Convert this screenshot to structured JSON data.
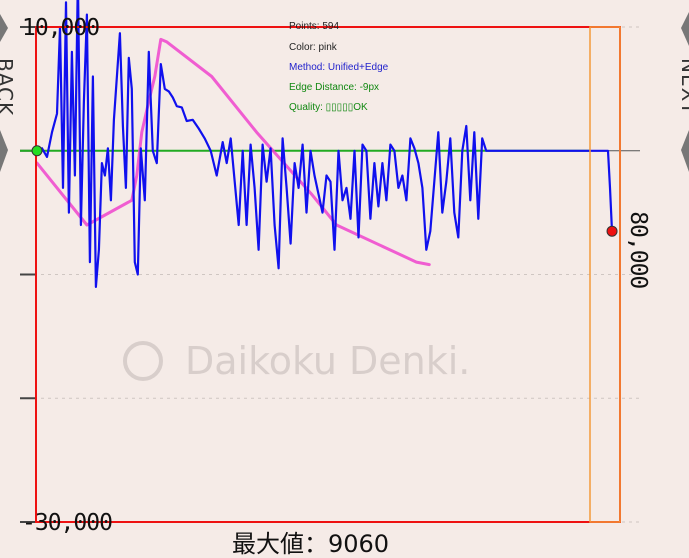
{
  "chart_data": {
    "type": "line",
    "x_range": [
      0,
      594
    ],
    "ylim": [
      -30000,
      10000
    ],
    "y_ticks": [
      10000,
      0,
      -10000,
      -20000,
      -30000
    ],
    "y_tick_labels": [
      {
        "value": 10000,
        "label": "10,000"
      },
      {
        "value": -30000,
        "label": "-30,000"
      }
    ],
    "right_label": {
      "value": -6500,
      "label": "80,000"
    },
    "grid": true,
    "baseline_value": 0,
    "series": [
      {
        "color": "#1010ee",
        "x": [
          0,
          5,
          10,
          15,
          20,
          23,
          26,
          29,
          32,
          35,
          38,
          41,
          44,
          47,
          50,
          53,
          56,
          59,
          62,
          65,
          68,
          71,
          74,
          77,
          80,
          83,
          86,
          89,
          92,
          95,
          98,
          101,
          104,
          108,
          112,
          116,
          120,
          124,
          128,
          132,
          136,
          140,
          145,
          150,
          156,
          162,
          168,
          174,
          180,
          186,
          190,
          194,
          198,
          202,
          206,
          210,
          214,
          218,
          222,
          226,
          230,
          234,
          238,
          242,
          246,
          250,
          254,
          258,
          262,
          266,
          270,
          274,
          278,
          282,
          286,
          290,
          294,
          298,
          302,
          306,
          310,
          314,
          318,
          322,
          326,
          330,
          334,
          338,
          342,
          346,
          350,
          354,
          358,
          362,
          366,
          370,
          374,
          378,
          382,
          386,
          390,
          394,
          398,
          402,
          406,
          410,
          414,
          418,
          422,
          426,
          430,
          434,
          438,
          442,
          446,
          450,
          500,
          550,
          572,
          574,
          576
        ],
        "y": [
          0,
          200,
          -500,
          1500,
          3000,
          10000,
          -3000,
          12000,
          -5000,
          8000,
          -2000,
          14000,
          -6000,
          4000,
          11000,
          -9000,
          6000,
          -11000,
          -8000,
          -1000,
          -2000,
          200,
          -4000,
          2500,
          6000,
          9500,
          2000,
          -3000,
          7500,
          5000,
          -9000,
          -10000,
          200,
          -4000,
          8000,
          0,
          -1000,
          7000,
          5000,
          4800,
          4300,
          3600,
          3500,
          2400,
          2500,
          1800,
          1000,
          0,
          -2000,
          700,
          -1000,
          1000,
          -2500,
          -6000,
          0,
          -6000,
          500,
          -3000,
          -8000,
          500,
          -2500,
          200,
          -6000,
          -9500,
          1000,
          -3000,
          -7500,
          -1000,
          -3000,
          500,
          -5000,
          0,
          -2000,
          -3500,
          -5000,
          -2000,
          -2500,
          -8000,
          0,
          -4000,
          -3000,
          -5500,
          0,
          -7000,
          500,
          0,
          -5500,
          -1000,
          -4500,
          -1000,
          -4000,
          500,
          0,
          -3000,
          -2000,
          -4000,
          1000,
          200,
          -1000,
          -3000,
          -8000,
          -6500,
          -2500,
          1500,
          -5000,
          -2500,
          1000,
          -5000,
          -7000,
          0,
          2000,
          -4000,
          1500,
          -5500,
          1000,
          0,
          0,
          0,
          0,
          -3000,
          -6500
        ]
      },
      {
        "color": "#ee44cc",
        "x": [
          0,
          50,
          95,
          100,
          105,
          112,
          118,
          124,
          130,
          175,
          220,
          275,
          300,
          380,
          393
        ],
        "y": [
          -1000,
          -6000,
          -4000,
          -2000,
          1500,
          4000,
          6000,
          9000,
          8800,
          6000,
          1500,
          -3500,
          -6000,
          -9000,
          -9200
        ]
      }
    ],
    "markers": [
      {
        "x": 0,
        "y": 0,
        "color": "#22dd22"
      },
      {
        "x": 576,
        "y": -6500,
        "color": "#ee1111"
      }
    ]
  },
  "overlay": {
    "points": "Points: 594",
    "color": "Color: pink",
    "method": "Method: Unified+Edge",
    "edge": "Edge Distance: -9px",
    "quality": "Quality: ▯▯▯▯▯OK"
  },
  "nav": {
    "back": "BACK",
    "next": "NEXT"
  },
  "bottom_caption": "最大値：9060",
  "watermark": "Daikoku Denki.",
  "colors": {
    "background": "#f5ebe7",
    "red_frame": "#ee1111",
    "orange_frame": "#f39a3a",
    "baseline": "#22aa22",
    "overlay_method": "#2222cc",
    "overlay_edge": "#118811"
  }
}
